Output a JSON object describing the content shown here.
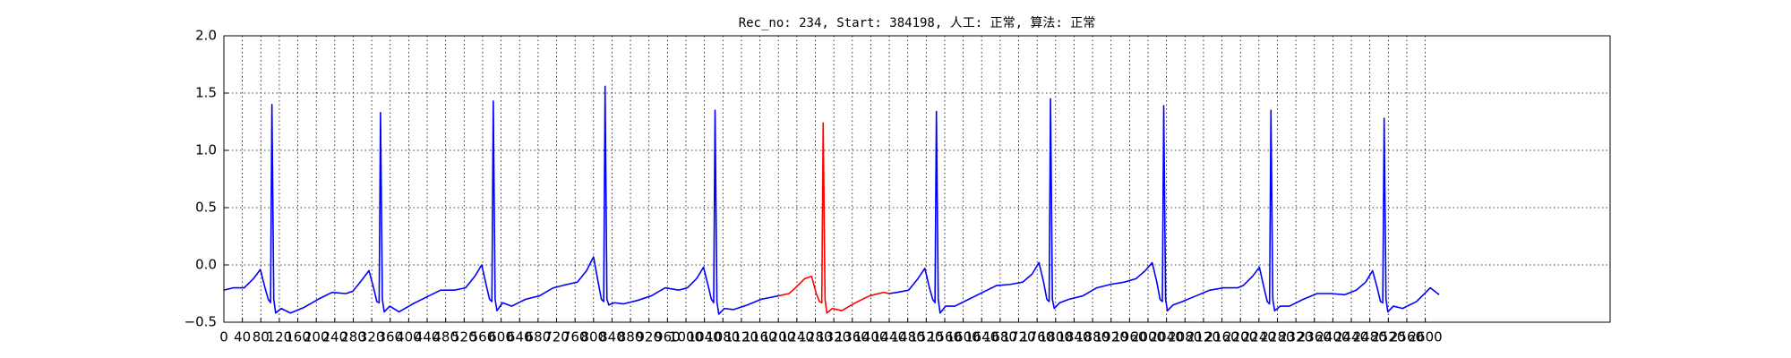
{
  "chart_data": {
    "type": "line",
    "title": "Rec_no: 234, Start: 384198, 人工: 正常, 算法: 正常",
    "xlim": [
      0,
      3000
    ],
    "ylim": [
      -0.5,
      2.0
    ],
    "xticks": [
      0,
      40,
      80,
      120,
      160,
      200,
      240,
      280,
      320,
      360,
      400,
      440,
      480,
      520,
      560,
      600,
      640,
      680,
      720,
      760,
      800,
      840,
      880,
      920,
      960,
      1000,
      1040,
      1080,
      1120,
      1160,
      1200,
      1240,
      1280,
      1320,
      1360,
      1400,
      1440,
      1480,
      1520,
      1560,
      1600,
      1640,
      1680,
      1720,
      1760,
      1800,
      1840,
      1880,
      1920,
      1960,
      2000,
      2040,
      2080,
      2120,
      2160,
      2200,
      2240,
      2280,
      2320,
      2360,
      2400,
      2440,
      2480,
      2520,
      2560,
      2600
    ],
    "yticks": [
      {
        "value": -0.5,
        "label": "−0.5"
      },
      {
        "value": 0.0,
        "label": "0.0"
      },
      0.5,
      {
        "value": 1.0,
        "label": "1.0"
      },
      1.5,
      {
        "value": 2.0,
        "label": "2.0"
      }
    ],
    "grid": true,
    "series": [
      {
        "color": "#0000ff",
        "x": [
          0,
          20,
          44,
          64,
          79,
          89,
          96,
          101,
          104,
          108,
          112,
          124,
          144,
          174,
          204,
          234,
          264,
          279,
          299,
          314,
          324,
          331,
          336,
          339,
          343,
          347,
          359,
          379,
          409,
          439,
          469,
          499,
          523,
          543,
          558,
          568,
          575,
          580,
          583,
          587,
          591,
          603,
          623,
          653,
          683,
          713,
          743,
          765,
          785,
          800,
          810,
          817,
          822,
          825,
          829,
          833,
          845,
          865,
          895,
          925,
          955,
          985,
          1003,
          1023,
          1038,
          1048,
          1055,
          1060,
          1063,
          1067,
          1071,
          1083,
          1103,
          1133,
          1163,
          1200,
          1297,
          1440,
          1457,
          1482,
          1502,
          1517,
          1527,
          1534,
          1539,
          1542,
          1546,
          1550,
          1562,
          1582,
          1612,
          1642,
          1672,
          1702,
          1729,
          1749,
          1764,
          1774,
          1781,
          1786,
          1789,
          1793,
          1797,
          1809,
          1829,
          1859,
          1889,
          1919,
          1949,
          1974,
          1994,
          2009,
          2019,
          2026,
          2031,
          2034,
          2038,
          2042,
          2054,
          2074,
          2104,
          2134,
          2164,
          2194,
          2206,
          2226,
          2241,
          2251,
          2258,
          2263,
          2266,
          2270,
          2274,
          2286,
          2306,
          2336,
          2366,
          2396,
          2426,
          2451,
          2471,
          2486,
          2496,
          2503,
          2508,
          2511,
          2515,
          2519,
          2531,
          2551,
          2581,
          2611,
          2630
        ],
        "values": [
          -0.22,
          -0.2,
          -0.2,
          -0.12,
          -0.04,
          -0.2,
          -0.3,
          -0.33,
          1.4,
          -0.3,
          -0.42,
          -0.38,
          -0.42,
          -0.37,
          -0.3,
          -0.24,
          -0.25,
          -0.23,
          -0.13,
          -0.05,
          -0.2,
          -0.32,
          -0.33,
          1.33,
          -0.3,
          -0.41,
          -0.36,
          -0.41,
          -0.34,
          -0.28,
          -0.22,
          -0.22,
          -0.2,
          -0.1,
          0.0,
          -0.18,
          -0.3,
          -0.32,
          1.43,
          -0.3,
          -0.4,
          -0.33,
          -0.36,
          -0.3,
          -0.27,
          -0.2,
          -0.17,
          -0.15,
          -0.05,
          0.07,
          -0.15,
          -0.3,
          -0.32,
          1.56,
          -0.3,
          -0.35,
          -0.33,
          -0.34,
          -0.31,
          -0.27,
          -0.2,
          -0.22,
          -0.2,
          -0.12,
          -0.02,
          -0.18,
          -0.3,
          -0.33,
          1.35,
          -0.32,
          -0.43,
          -0.38,
          -0.39,
          -0.35,
          -0.3,
          -0.27,
          null,
          -0.25,
          -0.24,
          -0.22,
          -0.12,
          -0.03,
          -0.2,
          -0.3,
          -0.33,
          1.34,
          -0.3,
          -0.42,
          -0.36,
          -0.36,
          -0.3,
          -0.24,
          -0.18,
          -0.17,
          -0.15,
          -0.08,
          0.02,
          -0.15,
          -0.3,
          -0.32,
          1.45,
          -0.3,
          -0.38,
          -0.33,
          -0.3,
          -0.27,
          -0.2,
          -0.17,
          -0.15,
          -0.12,
          -0.05,
          0.02,
          -0.15,
          -0.3,
          -0.32,
          1.39,
          -0.3,
          -0.4,
          -0.35,
          -0.32,
          -0.27,
          -0.22,
          -0.2,
          -0.2,
          -0.18,
          -0.1,
          -0.02,
          -0.2,
          -0.32,
          -0.34,
          1.35,
          -0.3,
          -0.4,
          -0.36,
          -0.36,
          -0.3,
          -0.25,
          -0.25,
          -0.26,
          -0.22,
          -0.15,
          -0.05,
          -0.2,
          -0.32,
          -0.33,
          1.28,
          -0.3,
          -0.41,
          -0.36,
          -0.38,
          -0.32,
          -0.2,
          -0.26
        ]
      },
      {
        "color": "#ff0000",
        "x": [
          1200,
          1223,
          1237,
          1257,
          1272,
          1282,
          1289,
          1294,
          1297,
          1301,
          1305,
          1317,
          1337,
          1367,
          1397,
          1427,
          1440
        ],
        "values": [
          -0.27,
          -0.25,
          -0.2,
          -0.12,
          -0.1,
          -0.25,
          -0.32,
          -0.33,
          1.24,
          -0.3,
          -0.42,
          -0.38,
          -0.4,
          -0.33,
          -0.27,
          -0.24,
          -0.25
        ]
      }
    ]
  }
}
